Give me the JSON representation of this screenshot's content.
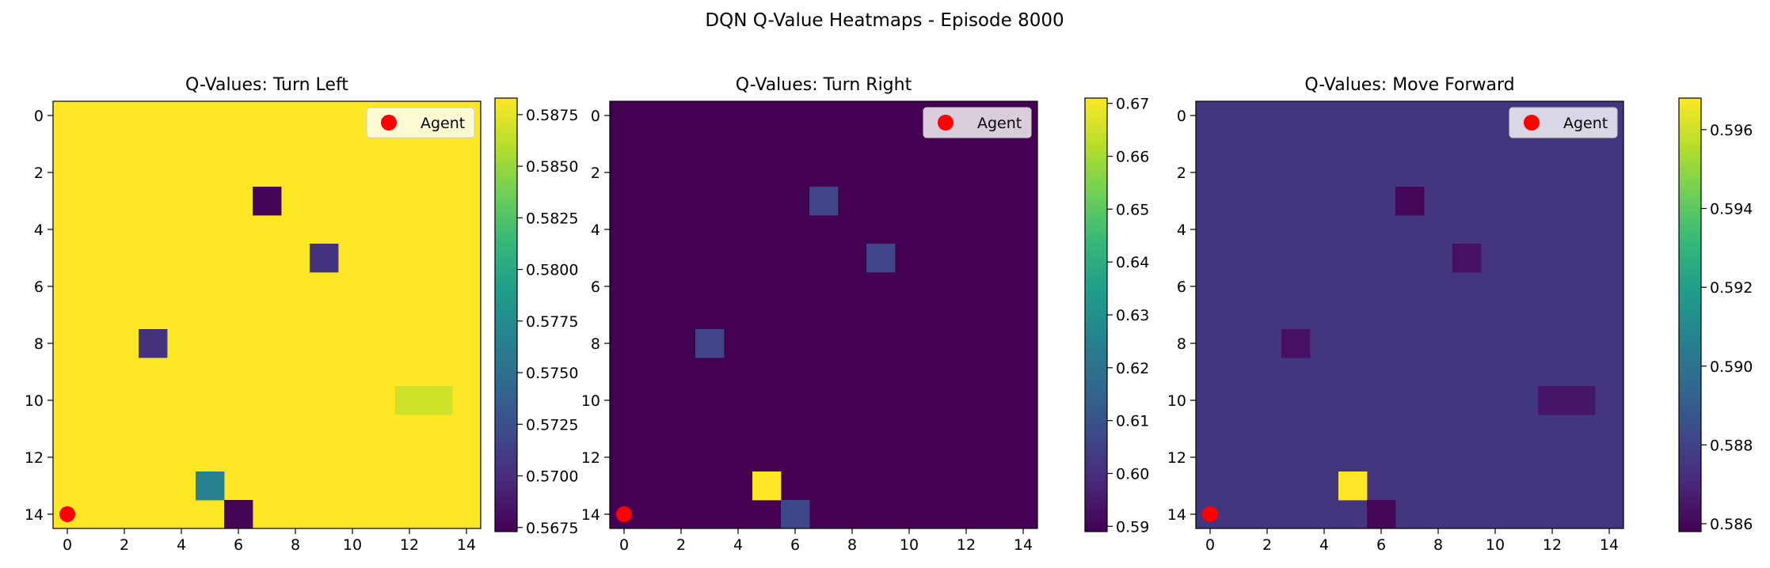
{
  "figure": {
    "suptitle": "DQN Q-Value Heatmaps - Episode 8000"
  },
  "agent": {
    "label": "Agent",
    "x": 0,
    "y": 14,
    "color": "#ff0000"
  },
  "colormap": [
    "#440154",
    "#482878",
    "#3e4989",
    "#31688e",
    "#26828e",
    "#1f9e89",
    "#35b779",
    "#6ece58",
    "#b5de2b",
    "#fde725"
  ],
  "chart_data": [
    {
      "type": "heatmap",
      "title": "Q-Values: Turn Left",
      "grid_size": 15,
      "xticks": [
        0,
        2,
        4,
        6,
        8,
        10,
        12,
        14
      ],
      "yticks": [
        0,
        2,
        4,
        6,
        8,
        10,
        12,
        14
      ],
      "vmin": 0.5673,
      "vmax": 0.5883,
      "background": 0.5883,
      "cells": [
        {
          "row": 3,
          "col": 7,
          "value": 0.5675
        },
        {
          "row": 5,
          "col": 9,
          "value": 0.5705
        },
        {
          "row": 8,
          "col": 3,
          "value": 0.5705
        },
        {
          "row": 10,
          "col": 12,
          "value": 0.5868
        },
        {
          "row": 10,
          "col": 13,
          "value": 0.5868
        },
        {
          "row": 13,
          "col": 5,
          "value": 0.5765
        },
        {
          "row": 14,
          "col": 6,
          "value": 0.5675
        }
      ],
      "colorbar_ticks": [
        0.5675,
        0.57,
        0.5725,
        0.575,
        0.5775,
        0.58,
        0.5825,
        0.585,
        0.5875
      ]
    },
    {
      "type": "heatmap",
      "title": "Q-Values: Turn Right",
      "grid_size": 15,
      "xticks": [
        0,
        2,
        4,
        6,
        8,
        10,
        12,
        14
      ],
      "yticks": [
        0,
        2,
        4,
        6,
        8,
        10,
        12,
        14
      ],
      "vmin": 0.589,
      "vmax": 0.671,
      "background": 0.589,
      "cells": [
        {
          "row": 3,
          "col": 7,
          "value": 0.606
        },
        {
          "row": 5,
          "col": 9,
          "value": 0.606
        },
        {
          "row": 8,
          "col": 3,
          "value": 0.606
        },
        {
          "row": 13,
          "col": 5,
          "value": 0.671
        },
        {
          "row": 14,
          "col": 6,
          "value": 0.607
        }
      ],
      "colorbar_ticks": [
        0.59,
        0.6,
        0.61,
        0.62,
        0.63,
        0.64,
        0.65,
        0.66,
        0.67
      ]
    },
    {
      "type": "heatmap",
      "title": "Q-Values: Move Forward",
      "grid_size": 15,
      "xticks": [
        0,
        2,
        4,
        6,
        8,
        10,
        12,
        14
      ],
      "yticks": [
        0,
        2,
        4,
        6,
        8,
        10,
        12,
        14
      ],
      "vmin": 0.5858,
      "vmax": 0.5968,
      "background": 0.5875,
      "cells": [
        {
          "row": 3,
          "col": 7,
          "value": 0.586
        },
        {
          "row": 5,
          "col": 9,
          "value": 0.5863
        },
        {
          "row": 8,
          "col": 3,
          "value": 0.5863
        },
        {
          "row": 10,
          "col": 12,
          "value": 0.5865
        },
        {
          "row": 10,
          "col": 13,
          "value": 0.5865
        },
        {
          "row": 13,
          "col": 5,
          "value": 0.5968
        },
        {
          "row": 14,
          "col": 6,
          "value": 0.586
        }
      ],
      "colorbar_ticks": [
        0.586,
        0.588,
        0.59,
        0.592,
        0.594,
        0.596
      ]
    }
  ]
}
